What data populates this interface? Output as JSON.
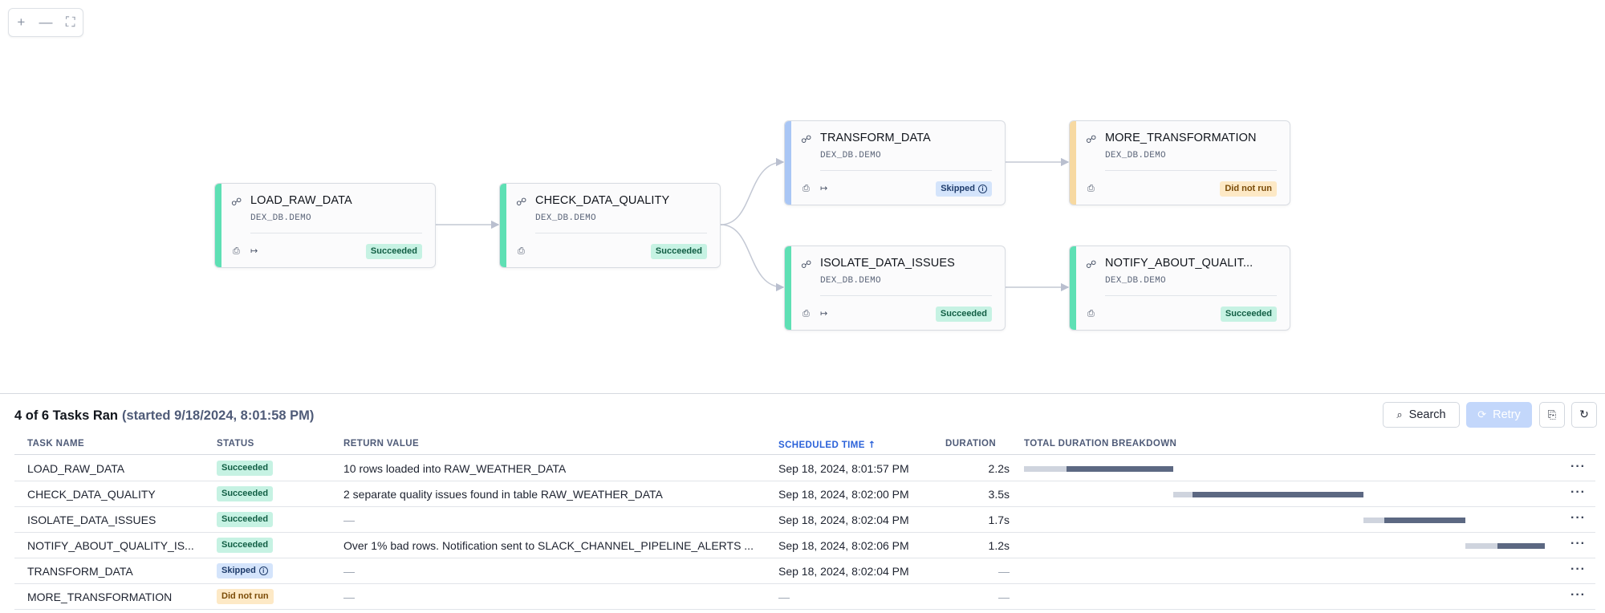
{
  "zoom_controls": {
    "zoom_in": "+",
    "zoom_out": "—",
    "fit": "⛶"
  },
  "colors": {
    "succeeded": "#5ee0b4",
    "skipped": "#a9c6f5",
    "did_not_run": "#f7d9a1"
  },
  "nodes": [
    {
      "id": "load",
      "name": "LOAD_RAW_DATA",
      "schema": "DEX_DB.DEMO",
      "status": "Succeeded",
      "status_kind": "succeeded",
      "has_return": true
    },
    {
      "id": "check",
      "name": "CHECK_DATA_QUALITY",
      "schema": "DEX_DB.DEMO",
      "status": "Succeeded",
      "status_kind": "succeeded",
      "has_return": false
    },
    {
      "id": "transform",
      "name": "TRANSFORM_DATA",
      "schema": "DEX_DB.DEMO",
      "status": "Skipped",
      "status_kind": "skipped",
      "has_return": true
    },
    {
      "id": "more",
      "name": "MORE_TRANSFORMATION",
      "schema": "DEX_DB.DEMO",
      "status": "Did not run",
      "status_kind": "did_not_run",
      "has_return": false
    },
    {
      "id": "isolate",
      "name": "ISOLATE_DATA_ISSUES",
      "schema": "DEX_DB.DEMO",
      "status": "Succeeded",
      "status_kind": "succeeded",
      "has_return": true
    },
    {
      "id": "notify",
      "name": "NOTIFY_ABOUT_QUALIT...",
      "schema": "DEX_DB.DEMO",
      "status": "Succeeded",
      "status_kind": "succeeded",
      "has_return": false
    }
  ],
  "panel": {
    "title": "4 of 6 Tasks Ran",
    "started": "(started 9/18/2024, 8:01:58 PM)",
    "search_label": "Search",
    "retry_label": "Retry",
    "columns": {
      "task_name": "TASK NAME",
      "status": "STATUS",
      "return_value": "RETURN VALUE",
      "scheduled_time": "SCHEDULED TIME",
      "duration": "DURATION",
      "breakdown": "TOTAL DURATION BREAKDOWN"
    },
    "rows": [
      {
        "name": "LOAD_RAW_DATA",
        "status": "Succeeded",
        "status_kind": "succeeded",
        "return_value": "10 rows loaded into RAW_WEATHER_DATA",
        "scheduled": "Sep 18, 2024, 8:01:57 PM",
        "duration": "2.2s",
        "breakdown": [
          0.0,
          0.081,
          0.286
        ]
      },
      {
        "name": "CHECK_DATA_QUALITY",
        "status": "Succeeded",
        "status_kind": "succeeded",
        "return_value": "2 separate quality issues found in table RAW_WEATHER_DATA",
        "scheduled": "Sep 18, 2024, 8:02:00 PM",
        "duration": "3.5s",
        "breakdown": [
          0.286,
          0.323,
          0.652
        ]
      },
      {
        "name": "ISOLATE_DATA_ISSUES",
        "status": "Succeeded",
        "status_kind": "succeeded",
        "return_value": "—",
        "scheduled": "Sep 18, 2024, 8:02:04 PM",
        "duration": "1.7s",
        "breakdown": [
          0.652,
          0.692,
          0.848
        ]
      },
      {
        "name": "NOTIFY_ABOUT_QUALITY_IS...",
        "status": "Succeeded",
        "status_kind": "succeeded",
        "return_value": "Over 1% bad rows. Notification sent to SLACK_CHANNEL_PIPELINE_ALERTS ...",
        "scheduled": "Sep 18, 2024, 8:02:06 PM",
        "duration": "1.2s",
        "breakdown": [
          0.848,
          0.909,
          1.0
        ]
      },
      {
        "name": "TRANSFORM_DATA",
        "status": "Skipped",
        "status_kind": "skipped",
        "return_value": "—",
        "scheduled": "Sep 18, 2024, 8:02:04 PM",
        "duration": "—",
        "breakdown": null
      },
      {
        "name": "MORE_TRANSFORMATION",
        "status": "Did not run",
        "status_kind": "did_not_run",
        "return_value": "—",
        "scheduled": "—",
        "duration": "—",
        "breakdown": null
      }
    ]
  }
}
